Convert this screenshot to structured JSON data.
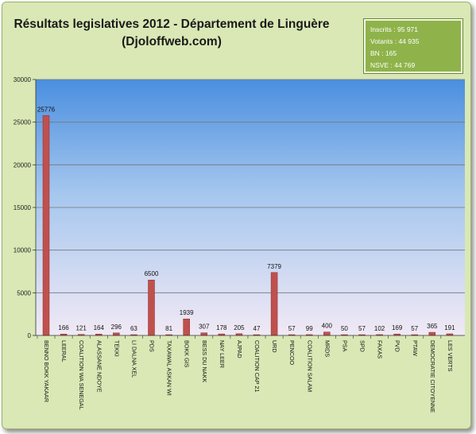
{
  "chart_data": {
    "type": "bar",
    "title": "Résultats legislatives 2012 - Département de Linguère",
    "subtitle": "(Djoloffweb.com)",
    "categories": [
      "BENNO BOKK YAKAAR",
      "LEERAL",
      "COALITION WA SENEGAL",
      "ALASSANE NDOYE",
      "TEKKI",
      "LI DALNA XEL",
      "PDS",
      "TAXAWAL ASKAN WI",
      "BOKK GIS",
      "BESS DU NAKK",
      "NAY LEER",
      "AJPAD",
      "COALITION CAP 21",
      "URD",
      "PENCOO",
      "COALITION SALAM",
      "MRDS",
      "PSA",
      "SPD",
      "FAXAS",
      "PVD",
      "PTAW",
      "DEMOCRATIE CITOYENNE",
      "LES VERTS"
    ],
    "values": [
      25776,
      166,
      121,
      164,
      296,
      63,
      6500,
      81,
      1939,
      307,
      178,
      205,
      47,
      7379,
      57,
      99,
      400,
      50,
      57,
      102,
      169,
      57,
      365,
      191
    ],
    "value_labels": [
      "25776",
      "166",
      "121",
      "164",
      "296",
      "63",
      "6500",
      "81",
      "1939",
      "307",
      "178",
      "205",
      "47",
      "7379",
      "57",
      "99",
      "400",
      "50",
      "57",
      "102",
      "169",
      "57",
      "365",
      "191"
    ],
    "tick_labels": [
      "BENNO BOKK YAKAAR",
      "LEERAL",
      "COALITION WA SENEGAL",
      "ALASSANE NDOYE",
      "TEKKI",
      "LI DALNA XEL",
      "PDS",
      "TAXAWAL ASKAN WI",
      "BOKK GIS",
      "BESS DU NAKK",
      "NAY LEER",
      "AJPAD",
      "COALITION CAP 21",
      "URD",
      "PENCOO",
      "COALITION SALAM",
      "MRDS",
      "PSA",
      "SPD",
      "FAXAS",
      "PVD",
      "PTAW",
      "DEMOCRATIE CITOYENNE",
      "LES VERTS"
    ],
    "yticks": [
      0,
      5000,
      10000,
      15000,
      20000,
      25000,
      30000
    ],
    "ylim": [
      0,
      30000
    ],
    "xlabel": "",
    "ylabel": "",
    "grid": true,
    "legend": "none",
    "bar_color": "#c0504d",
    "plot_gradient": [
      "#4a8fe0",
      "#f1e9f5"
    ],
    "frame_color": "#d9e8b5"
  },
  "stats": {
    "inscrits": "Inscrits : 95 971",
    "votants": "Votants : 44 935",
    "bn": "BN : 165",
    "nsve": "NSVE : 44 769"
  }
}
